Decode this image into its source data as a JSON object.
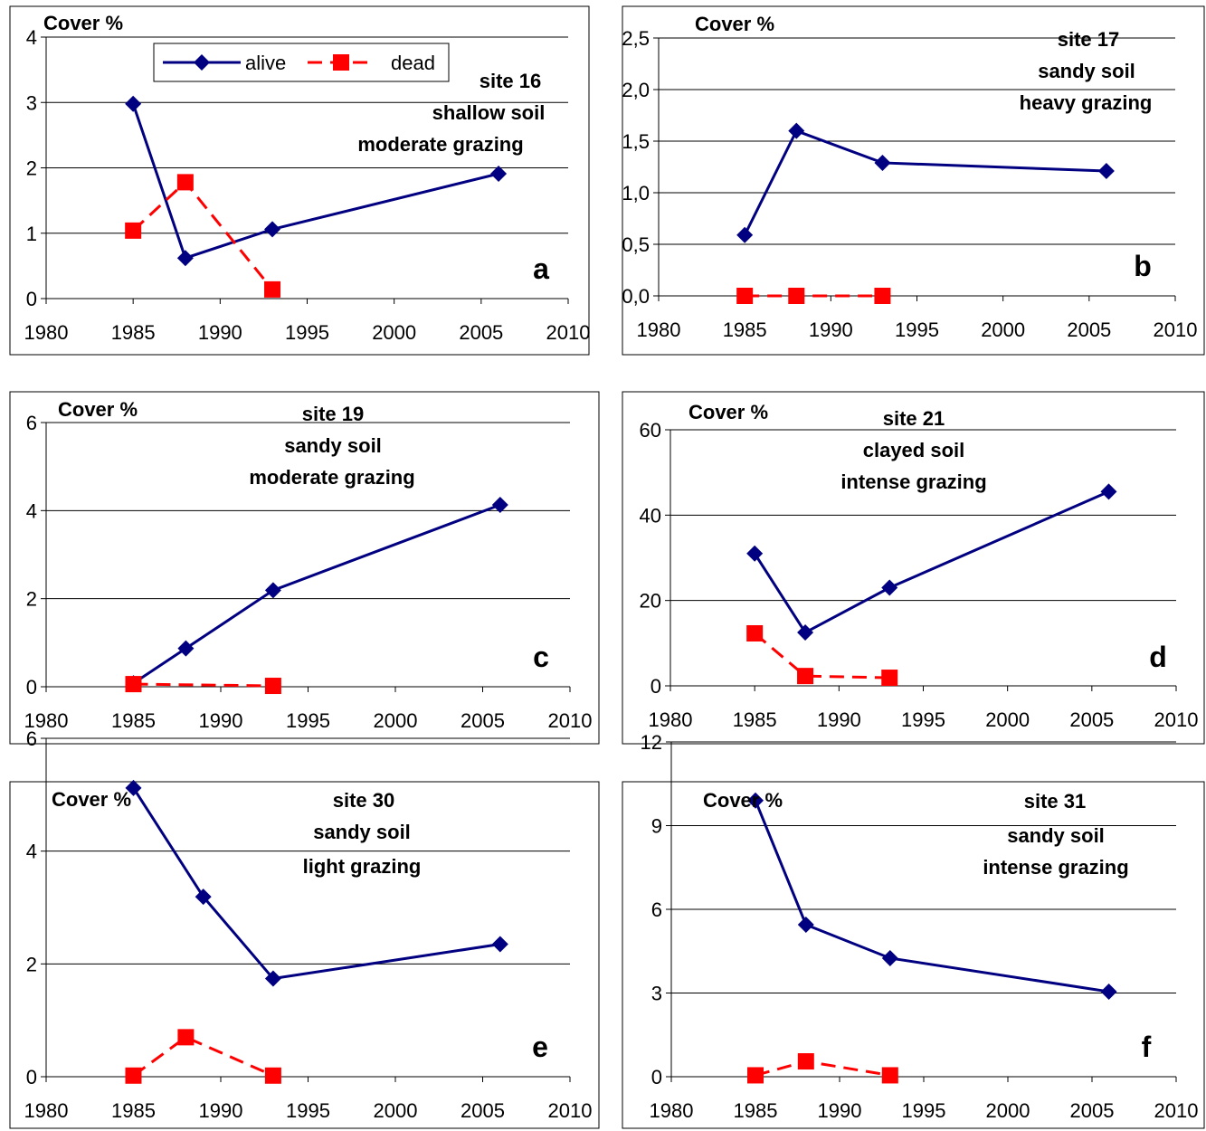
{
  "colors": {
    "alive": "#000080",
    "dead": "#ff0000",
    "grid": "#000000",
    "frame": "#000000"
  },
  "legend": {
    "alive": "alive",
    "dead": "dead"
  },
  "chart_data": [
    {
      "type": "line",
      "ylabel": "Cover %",
      "panel_letter": "a",
      "site_lines": [
        "site 16",
        "shallow soil",
        "moderate grazing"
      ],
      "xlim": [
        1980,
        2010
      ],
      "xticks": [
        "1980",
        "1985",
        "1990",
        "1995",
        "2000",
        "2005",
        "2010"
      ],
      "xtick_values": [
        1980,
        1985,
        1990,
        1995,
        2000,
        2005,
        2010
      ],
      "ylim": [
        0,
        4
      ],
      "yticks": [
        "0",
        "1",
        "2",
        "3",
        "4"
      ],
      "ytick_values": [
        0,
        1,
        2,
        3,
        4
      ],
      "grid": true,
      "legend": "top-center",
      "series": [
        {
          "name": "alive",
          "x": [
            1985,
            1988,
            1993,
            2006
          ],
          "y": [
            2.98,
            0.62,
            1.06,
            1.91
          ]
        },
        {
          "name": "dead",
          "x": [
            1985,
            1988,
            1993
          ],
          "y": [
            1.04,
            1.78,
            0.14
          ]
        }
      ]
    },
    {
      "type": "line",
      "ylabel": "Cover %",
      "panel_letter": "b",
      "site_lines": [
        "site 17",
        "sandy soil",
        "heavy grazing"
      ],
      "xlim": [
        1980,
        2010
      ],
      "xticks": [
        "1980",
        "1985",
        "1990",
        "1995",
        "2000",
        "2005",
        "2010"
      ],
      "xtick_values": [
        1980,
        1985,
        1990,
        1995,
        2000,
        2005,
        2010
      ],
      "ylim": [
        0,
        2.5
      ],
      "yticks": [
        "0,0",
        "0,5",
        "1,0",
        "1,5",
        "2,0",
        "2,5"
      ],
      "ytick_values": [
        0,
        0.5,
        1,
        1.5,
        2,
        2.5
      ],
      "grid": true,
      "series": [
        {
          "name": "alive",
          "x": [
            1985,
            1988,
            1993,
            2006
          ],
          "y": [
            0.59,
            1.6,
            1.29,
            1.21
          ]
        },
        {
          "name": "dead",
          "x": [
            1985,
            1988,
            1993
          ],
          "y": [
            0,
            0,
            0
          ]
        }
      ]
    },
    {
      "type": "line",
      "ylabel": "Cover %",
      "panel_letter": "c",
      "site_lines": [
        "site 19",
        "sandy soil",
        "moderate grazing"
      ],
      "xlim": [
        1980,
        2010
      ],
      "xticks": [
        "1980",
        "1985",
        "1990",
        "1995",
        "2000",
        "2005",
        "2010"
      ],
      "xtick_values": [
        1980,
        1985,
        1990,
        1995,
        2000,
        2005,
        2010
      ],
      "ylim": [
        0,
        6
      ],
      "yticks": [
        "0",
        "2",
        "4",
        "6"
      ],
      "ytick_values": [
        0,
        2,
        4,
        6
      ],
      "grid": true,
      "series": [
        {
          "name": "alive",
          "x": [
            1985,
            1988,
            1993,
            2006
          ],
          "y": [
            0.08,
            0.87,
            2.19,
            4.13
          ]
        },
        {
          "name": "dead",
          "x": [
            1985,
            1993
          ],
          "y": [
            0.06,
            0.02
          ]
        }
      ]
    },
    {
      "type": "line",
      "ylabel": "Cover %",
      "panel_letter": "d",
      "site_lines": [
        "site 21",
        "clayed soil",
        "intense grazing"
      ],
      "xlim": [
        1980,
        2010
      ],
      "xticks": [
        "1980",
        "1985",
        "1990",
        "1995",
        "2000",
        "2005",
        "2010"
      ],
      "xtick_values": [
        1980,
        1985,
        1990,
        1995,
        2000,
        2005,
        2010
      ],
      "ylim": [
        0,
        60
      ],
      "yticks": [
        "0",
        "20",
        "40",
        "60"
      ],
      "ytick_values": [
        0,
        20,
        40,
        60
      ],
      "grid": true,
      "series": [
        {
          "name": "alive",
          "x": [
            1985,
            1988,
            1993,
            2006
          ],
          "y": [
            31,
            12.5,
            23,
            45.5
          ]
        },
        {
          "name": "dead",
          "x": [
            1985,
            1988,
            1993
          ],
          "y": [
            12.3,
            2.3,
            1.9
          ]
        }
      ]
    },
    {
      "type": "line",
      "ylabel": "Cover %",
      "panel_letter": "e",
      "site_lines": [
        "site 30",
        "sandy soil",
        "light grazing"
      ],
      "xlim": [
        1980,
        2010
      ],
      "xticks": [
        "1980",
        "1985",
        "1990",
        "1995",
        "2000",
        "2005",
        "2010"
      ],
      "xtick_values": [
        1980,
        1985,
        1990,
        1995,
        2000,
        2005,
        2010
      ],
      "ylim": [
        0,
        6
      ],
      "yticks": [
        "0",
        "2",
        "4",
        "6"
      ],
      "ytick_values": [
        0,
        2,
        4,
        6
      ],
      "grid": true,
      "series": [
        {
          "name": "alive",
          "x": [
            1985,
            1989,
            1993,
            2006
          ],
          "y": [
            5.12,
            3.19,
            1.74,
            2.35
          ]
        },
        {
          "name": "dead",
          "x": [
            1985,
            1988,
            1993
          ],
          "y": [
            0.02,
            0.7,
            0.02
          ]
        }
      ]
    },
    {
      "type": "line",
      "ylabel": "Cover %",
      "panel_letter": "f",
      "site_lines": [
        "site 31",
        "sandy soil",
        "intense grazing"
      ],
      "xlim": [
        1980,
        2010
      ],
      "xticks": [
        "1980",
        "1985",
        "1990",
        "1995",
        "2000",
        "2005",
        "2010"
      ],
      "xtick_values": [
        1980,
        1985,
        1990,
        1995,
        2000,
        2005,
        2010
      ],
      "ylim": [
        0,
        12
      ],
      "yticks": [
        "0",
        "3",
        "6",
        "9",
        "12"
      ],
      "ytick_values": [
        0,
        3,
        6,
        9,
        12
      ],
      "grid": true,
      "series": [
        {
          "name": "alive",
          "x": [
            1985,
            1988,
            1993,
            2006
          ],
          "y": [
            9.9,
            5.45,
            4.25,
            3.05
          ]
        },
        {
          "name": "dead",
          "x": [
            1985,
            1988,
            1993
          ],
          "y": [
            0.05,
            0.55,
            0.05
          ]
        }
      ]
    }
  ]
}
